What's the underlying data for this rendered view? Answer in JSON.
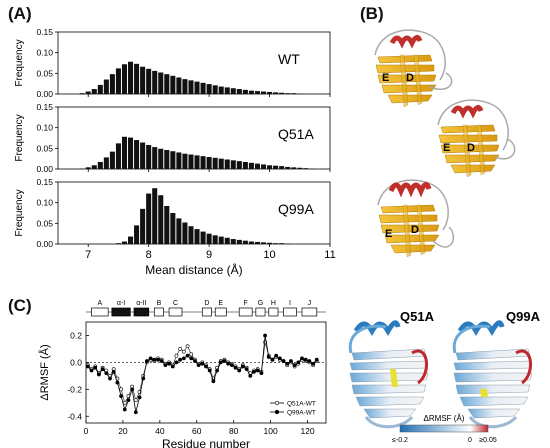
{
  "panel_labels": {
    "a": "(A)",
    "b": "(B)",
    "c": "(C)"
  },
  "panel_a": {
    "xlabel": "Mean distance (Å)",
    "ylabel": "Frequency",
    "x_ticks": [
      "7",
      "8",
      "9",
      "10",
      "11"
    ],
    "y_ticks": [
      "0.00",
      "0.05",
      "0.10",
      "0.15"
    ]
  },
  "panel_b": {
    "strand_labels": [
      "E",
      "D"
    ]
  },
  "panel_c": {
    "ylabel": "ΔRMSF (Å)",
    "xlabel": "Residue number",
    "y_ticks": [
      "-0.4",
      "-0.2",
      "0.0",
      "0.2"
    ],
    "x_ticks": [
      "0",
      "20",
      "40",
      "60",
      "80",
      "100",
      "120"
    ],
    "segments": [
      "A",
      "α-I",
      "α-II",
      "B",
      "C",
      "D",
      "E",
      "F",
      "G",
      "H",
      "I",
      "J"
    ],
    "legend": [
      "Q51A-WT",
      "Q99A-WT"
    ],
    "structure_titles": [
      "Q51A",
      "Q99A"
    ],
    "colorbar": {
      "title": "ΔRMSF (Å)",
      "min_label": "≤-0.2",
      "mid_label": "0",
      "max_label": "≥0.05",
      "min_color": "#1f6fb5",
      "mid_color": "#ffffff",
      "max_color": "#c0282f"
    }
  },
  "chart_data": [
    {
      "type": "bar",
      "series": [
        {
          "name": "WT",
          "x": [
            6.9,
            7.0,
            7.1,
            7.2,
            7.3,
            7.4,
            7.5,
            7.6,
            7.7,
            7.8,
            7.9,
            8.0,
            8.1,
            8.2,
            8.3,
            8.4,
            8.5,
            8.6,
            8.7,
            8.8,
            8.9,
            9.0,
            9.1,
            9.2,
            9.3,
            9.4,
            9.5,
            9.6,
            9.7,
            9.8,
            9.9,
            10.0,
            10.1,
            10.2,
            10.3,
            10.4,
            10.5
          ],
          "values": [
            0.002,
            0.006,
            0.012,
            0.022,
            0.035,
            0.048,
            0.062,
            0.072,
            0.078,
            0.073,
            0.066,
            0.061,
            0.056,
            0.052,
            0.048,
            0.044,
            0.04,
            0.036,
            0.033,
            0.03,
            0.027,
            0.024,
            0.021,
            0.018,
            0.016,
            0.014,
            0.012,
            0.01,
            0.008,
            0.007,
            0.006,
            0.005,
            0.004,
            0.003,
            0.002,
            0.002,
            0.001
          ]
        },
        {
          "name": "Q51A",
          "x": [
            6.9,
            7.0,
            7.1,
            7.2,
            7.3,
            7.4,
            7.5,
            7.6,
            7.7,
            7.8,
            7.9,
            8.0,
            8.1,
            8.2,
            8.3,
            8.4,
            8.5,
            8.6,
            8.7,
            8.8,
            8.9,
            9.0,
            9.1,
            9.2,
            9.3,
            9.4,
            9.5,
            9.6,
            9.7,
            9.8,
            9.9,
            10.0,
            10.1,
            10.2,
            10.3,
            10.4,
            10.5,
            10.6,
            10.7
          ],
          "values": [
            0.001,
            0.004,
            0.009,
            0.017,
            0.028,
            0.042,
            0.062,
            0.078,
            0.076,
            0.07,
            0.064,
            0.058,
            0.053,
            0.049,
            0.046,
            0.043,
            0.04,
            0.037,
            0.035,
            0.033,
            0.031,
            0.029,
            0.027,
            0.025,
            0.023,
            0.021,
            0.019,
            0.017,
            0.015,
            0.013,
            0.011,
            0.009,
            0.008,
            0.007,
            0.005,
            0.004,
            0.003,
            0.002,
            0.001
          ]
        },
        {
          "name": "Q99A",
          "x": [
            7.5,
            7.6,
            7.7,
            7.8,
            7.9,
            8.0,
            8.1,
            8.2,
            8.3,
            8.4,
            8.5,
            8.6,
            8.7,
            8.8,
            8.9,
            9.0,
            9.1,
            9.2,
            9.3,
            9.4,
            9.5,
            9.6,
            9.7,
            9.8,
            9.9,
            10.0,
            10.1,
            10.2,
            10.3
          ],
          "values": [
            0.002,
            0.006,
            0.018,
            0.045,
            0.085,
            0.122,
            0.135,
            0.118,
            0.092,
            0.075,
            0.062,
            0.052,
            0.043,
            0.036,
            0.03,
            0.025,
            0.021,
            0.018,
            0.015,
            0.012,
            0.01,
            0.008,
            0.006,
            0.005,
            0.004,
            0.003,
            0.002,
            0.002,
            0.001
          ]
        }
      ],
      "xlim": [
        6.5,
        11
      ],
      "ylim": [
        0,
        0.15
      ],
      "xlabel": "Mean distance (Å)",
      "ylabel": "Frequency"
    },
    {
      "type": "line",
      "xlim": [
        0,
        130
      ],
      "ylim": [
        -0.45,
        0.3
      ],
      "xlabel": "Residue number",
      "ylabel": "ΔRMSF (Å)",
      "series": [
        {
          "name": "Q51A-WT",
          "x": [
            1,
            3,
            5,
            7,
            9,
            11,
            13,
            15,
            17,
            19,
            21,
            23,
            25,
            27,
            29,
            31,
            33,
            35,
            37,
            39,
            41,
            43,
            45,
            47,
            49,
            51,
            53,
            55,
            57,
            59,
            61,
            63,
            65,
            67,
            69,
            71,
            73,
            75,
            77,
            79,
            81,
            83,
            85,
            87,
            89,
            91,
            93,
            95,
            97,
            99,
            101,
            103,
            105,
            107,
            109,
            111,
            113,
            115,
            117,
            119,
            121,
            123,
            125
          ],
          "values": [
            -0.02,
            -0.05,
            -0.03,
            -0.08,
            -0.04,
            -0.06,
            -0.1,
            -0.05,
            -0.12,
            -0.2,
            -0.3,
            -0.25,
            -0.18,
            -0.28,
            -0.22,
            -0.1,
            0.0,
            0.02,
            0.01,
            0.03,
            0.02,
            -0.01,
            0.0,
            -0.02,
            0.05,
            0.1,
            0.08,
            0.12,
            0.06,
            0.02,
            -0.01,
            0.0,
            -0.02,
            -0.05,
            -0.12,
            -0.04,
            0.01,
            0.02,
            0.0,
            -0.01,
            -0.03,
            -0.05,
            -0.02,
            -0.04,
            -0.08,
            -0.06,
            -0.05,
            -0.07,
            0.15,
            0.05,
            0.02,
            0.04,
            0.02,
            0.01,
            -0.02,
            0.0,
            -0.03,
            -0.01,
            0.02,
            0.01,
            0.0,
            -0.02,
            0.01
          ]
        },
        {
          "name": "Q99A-WT",
          "x": [
            1,
            3,
            5,
            7,
            9,
            11,
            13,
            15,
            17,
            19,
            21,
            23,
            25,
            27,
            29,
            31,
            33,
            35,
            37,
            39,
            41,
            43,
            45,
            47,
            49,
            51,
            53,
            55,
            57,
            59,
            61,
            63,
            65,
            67,
            69,
            71,
            73,
            75,
            77,
            79,
            81,
            83,
            85,
            87,
            89,
            91,
            93,
            95,
            97,
            99,
            101,
            103,
            105,
            107,
            109,
            111,
            113,
            115,
            117,
            119,
            121,
            123,
            125
          ],
          "values": [
            -0.03,
            -0.06,
            -0.04,
            -0.09,
            -0.05,
            -0.08,
            -0.12,
            -0.07,
            -0.15,
            -0.25,
            -0.35,
            -0.28,
            -0.2,
            -0.37,
            -0.26,
            -0.12,
            0.01,
            0.03,
            0.02,
            0.02,
            0.01,
            -0.02,
            -0.01,
            -0.03,
            0.0,
            0.02,
            0.03,
            0.05,
            0.03,
            0.01,
            -0.02,
            -0.01,
            -0.03,
            -0.06,
            -0.14,
            -0.06,
            0.0,
            0.01,
            -0.01,
            -0.02,
            -0.04,
            -0.06,
            -0.03,
            -0.05,
            -0.1,
            -0.07,
            -0.06,
            -0.08,
            0.2,
            0.04,
            0.02,
            0.05,
            0.03,
            0.01,
            -0.01,
            0.01,
            -0.02,
            0.0,
            0.03,
            0.02,
            0.01,
            -0.01,
            0.02
          ]
        }
      ]
    }
  ]
}
